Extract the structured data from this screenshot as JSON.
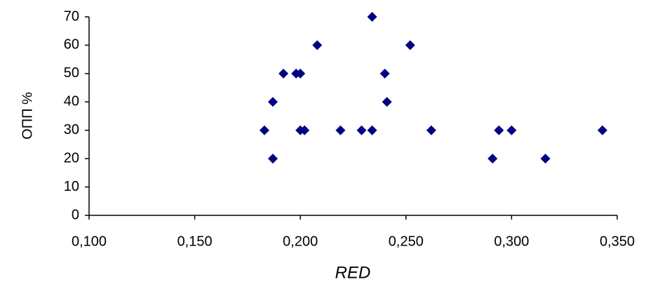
{
  "chart_data": {
    "type": "scatter",
    "x_label": "RED",
    "y_label": "ОПП %",
    "series": [
      {
        "color": "#000080",
        "x": [
          0.183,
          0.187,
          0.187,
          0.192,
          0.198,
          0.2,
          0.2,
          0.202,
          0.208,
          0.219,
          0.229,
          0.234,
          0.234,
          0.24,
          0.241,
          0.252,
          0.262,
          0.291,
          0.294,
          0.3,
          0.316,
          0.343
        ],
        "values": [
          30,
          20,
          40,
          50,
          50,
          50,
          30,
          30,
          60,
          30,
          30,
          70,
          30,
          50,
          40,
          60,
          30,
          20,
          30,
          30,
          20,
          30
        ]
      }
    ],
    "xlim": [
      0.1,
      0.35
    ],
    "xticks": [
      {
        "value": 0.1,
        "label": "0,100"
      },
      {
        "value": 0.15,
        "label": "0,150"
      },
      {
        "value": 0.2,
        "label": "0,200"
      },
      {
        "value": 0.25,
        "label": "0,250"
      },
      {
        "value": 0.3,
        "label": "0,300"
      },
      {
        "value": 0.35,
        "label": "0,350"
      }
    ],
    "ylim": [
      0,
      70
    ],
    "yticks": [
      0,
      10,
      20,
      30,
      40,
      50,
      60,
      70
    ],
    "grid": false
  }
}
